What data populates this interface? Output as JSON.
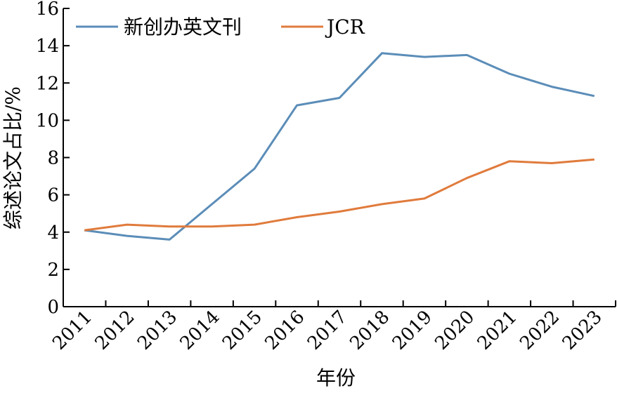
{
  "chart_data": {
    "type": "line",
    "title": "",
    "xlabel": "年份",
    "ylabel": "综述论文占比/%",
    "categories": [
      "2011",
      "2012",
      "2013",
      "2014",
      "2015",
      "2016",
      "2017",
      "2018",
      "2019",
      "2020",
      "2021",
      "2022",
      "2023"
    ],
    "ylim": [
      0,
      16
    ],
    "yticks": [
      "0",
      "2",
      "4",
      "6",
      "8",
      "10",
      "12",
      "14",
      "16"
    ],
    "grid": false,
    "legend_position": "top-left",
    "series": [
      {
        "name": "新创办英文刊",
        "color": "#5b8db8",
        "values": [
          4.1,
          3.8,
          3.6,
          5.5,
          7.4,
          10.8,
          11.2,
          13.6,
          13.4,
          13.5,
          12.5,
          11.8,
          11.3
        ]
      },
      {
        "name": "JCR",
        "color": "#e07b3c",
        "values": [
          4.1,
          4.4,
          4.3,
          4.3,
          4.4,
          4.8,
          5.1,
          5.5,
          5.8,
          6.9,
          7.8,
          7.7,
          7.9
        ]
      }
    ]
  }
}
